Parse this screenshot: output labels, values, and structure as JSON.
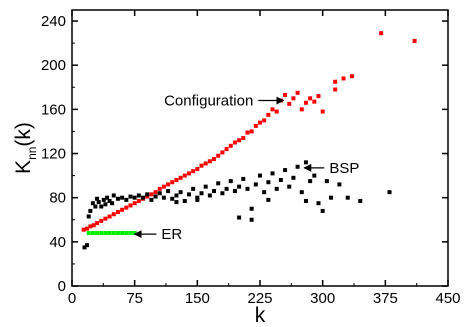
{
  "chart_data": {
    "type": "scatter",
    "xlabel": "k",
    "ylabel": "K",
    "ylabel_sub": "nn",
    "ylabel_tail": "(k)",
    "xlim": [
      0,
      450
    ],
    "ylim": [
      0,
      250
    ],
    "x_ticks": [
      0,
      75,
      150,
      225,
      300,
      375,
      450
    ],
    "y_ticks": [
      0,
      40,
      80,
      120,
      160,
      200,
      240
    ],
    "grid": false,
    "annotations": [
      {
        "text": "Configuration",
        "arrow_to_x": 253,
        "arrow_from_x": 223,
        "y": 168
      },
      {
        "text": "BSP",
        "arrow_to_x": 278,
        "arrow_from_x": 302,
        "y": 107
      },
      {
        "text": "ER",
        "arrow_to_x": 75,
        "arrow_from_x": 101,
        "y": 47
      }
    ],
    "series": [
      {
        "color": "#ff0000",
        "points": [
          [
            14,
            51
          ],
          [
            18,
            52
          ],
          [
            22,
            54
          ],
          [
            26,
            55
          ],
          [
            30,
            57
          ],
          [
            35,
            59
          ],
          [
            40,
            61
          ],
          [
            45,
            63
          ],
          [
            50,
            65
          ],
          [
            55,
            67
          ],
          [
            60,
            69
          ],
          [
            65,
            71
          ],
          [
            70,
            73
          ],
          [
            75,
            75
          ],
          [
            80,
            77
          ],
          [
            85,
            79
          ],
          [
            90,
            81
          ],
          [
            95,
            83
          ],
          [
            100,
            85
          ],
          [
            105,
            88
          ],
          [
            110,
            90
          ],
          [
            115,
            92
          ],
          [
            120,
            94
          ],
          [
            125,
            96
          ],
          [
            130,
            98
          ],
          [
            135,
            100
          ],
          [
            140,
            102
          ],
          [
            145,
            104
          ],
          [
            150,
            106
          ],
          [
            155,
            109
          ],
          [
            160,
            111
          ],
          [
            165,
            113
          ],
          [
            170,
            115
          ],
          [
            175,
            118
          ],
          [
            180,
            121
          ],
          [
            185,
            124
          ],
          [
            190,
            127
          ],
          [
            195,
            130
          ],
          [
            200,
            132
          ],
          [
            205,
            134
          ],
          [
            210,
            139
          ],
          [
            215,
            140
          ],
          [
            220,
            145
          ],
          [
            225,
            148
          ],
          [
            230,
            150
          ],
          [
            235,
            155
          ],
          [
            240,
            160
          ],
          [
            245,
            158
          ],
          [
            250,
            168
          ],
          [
            255,
            173
          ],
          [
            260,
            165
          ],
          [
            265,
            170
          ],
          [
            270,
            175
          ],
          [
            275,
            160
          ],
          [
            280,
            166
          ],
          [
            285,
            170
          ],
          [
            290,
            167
          ],
          [
            295,
            172
          ],
          [
            300,
            158
          ],
          [
            315,
            185
          ],
          [
            315,
            178
          ],
          [
            325,
            188
          ],
          [
            335,
            190
          ],
          [
            370,
            229
          ],
          [
            410,
            222
          ]
        ]
      },
      {
        "color": "#000000",
        "points": [
          [
            15,
            35
          ],
          [
            18,
            37
          ],
          [
            20,
            63
          ],
          [
            22,
            68
          ],
          [
            25,
            75
          ],
          [
            28,
            72
          ],
          [
            30,
            79
          ],
          [
            32,
            76
          ],
          [
            35,
            72
          ],
          [
            38,
            78
          ],
          [
            40,
            74
          ],
          [
            42,
            80
          ],
          [
            45,
            77
          ],
          [
            48,
            75
          ],
          [
            50,
            82
          ],
          [
            55,
            79
          ],
          [
            60,
            80
          ],
          [
            65,
            78
          ],
          [
            70,
            81
          ],
          [
            75,
            80
          ],
          [
            80,
            82
          ],
          [
            85,
            80
          ],
          [
            90,
            83
          ],
          [
            95,
            78
          ],
          [
            100,
            81
          ],
          [
            105,
            84
          ],
          [
            110,
            80
          ],
          [
            115,
            86
          ],
          [
            120,
            79
          ],
          [
            125,
            82
          ],
          [
            130,
            85
          ],
          [
            135,
            77
          ],
          [
            140,
            83
          ],
          [
            145,
            88
          ],
          [
            150,
            80
          ],
          [
            155,
            84
          ],
          [
            160,
            90
          ],
          [
            165,
            82
          ],
          [
            170,
            86
          ],
          [
            175,
            93
          ],
          [
            180,
            84
          ],
          [
            185,
            88
          ],
          [
            190,
            95
          ],
          [
            195,
            86
          ],
          [
            200,
            90
          ],
          [
            205,
            97
          ],
          [
            210,
            88
          ],
          [
            215,
            70
          ],
          [
            220,
            92
          ],
          [
            225,
            100
          ],
          [
            230,
            85
          ],
          [
            235,
            94
          ],
          [
            240,
            102
          ],
          [
            245,
            88
          ],
          [
            250,
            96
          ],
          [
            255,
            105
          ],
          [
            260,
            90
          ],
          [
            265,
            98
          ],
          [
            270,
            108
          ],
          [
            275,
            85
          ],
          [
            280,
            112
          ],
          [
            285,
            95
          ],
          [
            290,
            100
          ],
          [
            295,
            75
          ],
          [
            300,
            68
          ],
          [
            305,
            95
          ],
          [
            310,
            80
          ],
          [
            320,
            92
          ],
          [
            330,
            80
          ],
          [
            345,
            77
          ],
          [
            380,
            85
          ],
          [
            200,
            62
          ],
          [
            215,
            60
          ],
          [
            280,
            77
          ],
          [
            150,
            78
          ],
          [
            125,
            76
          ],
          [
            235,
            78
          ]
        ]
      },
      {
        "color": "#00ee00",
        "points": [
          [
            20,
            48
          ],
          [
            25,
            48
          ],
          [
            30,
            48
          ],
          [
            35,
            48
          ],
          [
            40,
            48
          ],
          [
            45,
            48
          ],
          [
            50,
            48
          ],
          [
            55,
            48
          ],
          [
            60,
            48
          ],
          [
            65,
            48
          ],
          [
            70,
            48
          ],
          [
            75,
            48
          ]
        ]
      }
    ]
  }
}
